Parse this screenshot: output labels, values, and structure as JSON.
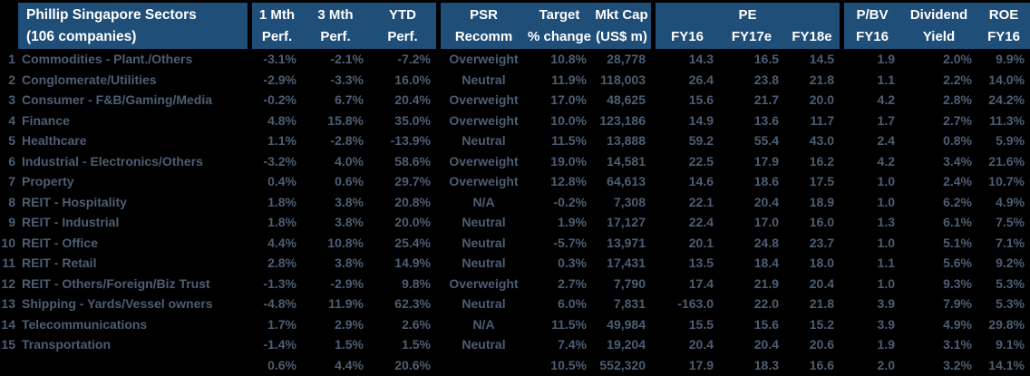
{
  "colors": {
    "header_bg": "#1f4e79",
    "header_text": "#ffffff",
    "body_bg": "#000000",
    "body_text": "#4d5e72"
  },
  "chart_data": {
    "type": "table",
    "title": "Phillip Singapore Sectors",
    "subtitle": "(106 companies)",
    "header": {
      "title_line1": "Phillip Singapore Sectors",
      "title_line2": "(106 companies)",
      "m1_l1": "1 Mth",
      "m1_l2": "Perf.",
      "m3_l1": "3 Mth",
      "m3_l2": "Perf.",
      "ytd_l1": "YTD",
      "ytd_l2": "Perf.",
      "psr_l1": "PSR",
      "psr_l2": "Recomm",
      "target_l1": "Target",
      "target_l2": "% change",
      "mktcap_l1": "Mkt Cap",
      "mktcap_l2": "(US$ m)",
      "pe_group": "PE",
      "pe_fy16": "FY16",
      "pe_fy17e": "FY17e",
      "pe_fy18e": "FY18e",
      "pbv_l1": "P/BV",
      "pbv_l2": "FY16",
      "div_l1": "Dividend",
      "div_l2": "Yield",
      "roe_l1": "ROE",
      "roe_l2": "FY16"
    },
    "rows": [
      {
        "num": "1",
        "sector": "Commodities - Plant./Others",
        "m1": "-3.1%",
        "m3": "-2.1%",
        "ytd": "-7.2%",
        "psr": "Overweight",
        "target": "10.8%",
        "mktcap": "28,778",
        "fy16": "14.3",
        "fy17e": "16.5",
        "fy18e": "14.5",
        "pbv": "1.9",
        "div": "2.0%",
        "roe": "9.9%"
      },
      {
        "num": "2",
        "sector": "Conglomerate/Utilities",
        "m1": "-2.9%",
        "m3": "-3.3%",
        "ytd": "16.0%",
        "psr": "Neutral",
        "target": "11.9%",
        "mktcap": "118,003",
        "fy16": "26.4",
        "fy17e": "23.8",
        "fy18e": "21.8",
        "pbv": "1.1",
        "div": "2.2%",
        "roe": "14.0%"
      },
      {
        "num": "3",
        "sector": "Consumer - F&B/Gaming/Media",
        "m1": "-0.2%",
        "m3": "6.7%",
        "ytd": "20.4%",
        "psr": "Overweight",
        "target": "17.0%",
        "mktcap": "48,625",
        "fy16": "15.6",
        "fy17e": "21.7",
        "fy18e": "20.0",
        "pbv": "4.2",
        "div": "2.8%",
        "roe": "24.2%"
      },
      {
        "num": "4",
        "sector": "Finance",
        "m1": "4.8%",
        "m3": "15.8%",
        "ytd": "35.0%",
        "psr": "Overweight",
        "target": "10.0%",
        "mktcap": "123,186",
        "fy16": "14.9",
        "fy17e": "13.6",
        "fy18e": "11.7",
        "pbv": "1.7",
        "div": "2.7%",
        "roe": "11.3%"
      },
      {
        "num": "5",
        "sector": "Healthcare",
        "m1": "1.1%",
        "m3": "-2.8%",
        "ytd": "-13.9%",
        "psr": "Neutral",
        "target": "11.5%",
        "mktcap": "13,888",
        "fy16": "59.2",
        "fy17e": "55.4",
        "fy18e": "43.0",
        "pbv": "2.4",
        "div": "0.8%",
        "roe": "5.9%"
      },
      {
        "num": "6",
        "sector": "Industrial - Electronics/Others",
        "m1": "-3.2%",
        "m3": "4.0%",
        "ytd": "58.6%",
        "psr": "Overweight",
        "target": "19.0%",
        "mktcap": "14,581",
        "fy16": "22.5",
        "fy17e": "17.9",
        "fy18e": "16.2",
        "pbv": "4.2",
        "div": "3.4%",
        "roe": "21.6%"
      },
      {
        "num": "7",
        "sector": "Property",
        "m1": "0.4%",
        "m3": "0.6%",
        "ytd": "29.7%",
        "psr": "Overweight",
        "target": "12.8%",
        "mktcap": "64,613",
        "fy16": "14.6",
        "fy17e": "18.6",
        "fy18e": "17.5",
        "pbv": "1.0",
        "div": "2.4%",
        "roe": "10.7%"
      },
      {
        "num": "8",
        "sector": "REIT - Hospitality",
        "m1": "1.8%",
        "m3": "3.8%",
        "ytd": "20.8%",
        "psr": "N/A",
        "target": "-0.2%",
        "mktcap": "7,308",
        "fy16": "22.1",
        "fy17e": "20.4",
        "fy18e": "18.9",
        "pbv": "1.0",
        "div": "6.2%",
        "roe": "4.9%"
      },
      {
        "num": "9",
        "sector": "REIT - Industrial",
        "m1": "1.8%",
        "m3": "3.8%",
        "ytd": "20.0%",
        "psr": "Neutral",
        "target": "1.9%",
        "mktcap": "17,127",
        "fy16": "22.4",
        "fy17e": "17.0",
        "fy18e": "16.0",
        "pbv": "1.3",
        "div": "6.1%",
        "roe": "7.5%"
      },
      {
        "num": "10",
        "sector": "REIT - Office",
        "m1": "4.4%",
        "m3": "10.8%",
        "ytd": "25.4%",
        "psr": "Neutral",
        "target": "-5.7%",
        "mktcap": "13,971",
        "fy16": "20.1",
        "fy17e": "24.8",
        "fy18e": "23.7",
        "pbv": "1.0",
        "div": "5.1%",
        "roe": "7.1%"
      },
      {
        "num": "11",
        "sector": "REIT - Retail",
        "m1": "2.8%",
        "m3": "3.8%",
        "ytd": "14.9%",
        "psr": "Neutral",
        "target": "0.3%",
        "mktcap": "17,431",
        "fy16": "13.5",
        "fy17e": "18.4",
        "fy18e": "18.0",
        "pbv": "1.1",
        "div": "5.6%",
        "roe": "9.2%"
      },
      {
        "num": "12",
        "sector": "REIT - Others/Foreign/Biz Trust",
        "m1": "-1.3%",
        "m3": "-2.9%",
        "ytd": "9.8%",
        "psr": "Overweight",
        "target": "2.7%",
        "mktcap": "7,790",
        "fy16": "17.4",
        "fy17e": "21.9",
        "fy18e": "20.4",
        "pbv": "1.0",
        "div": "9.3%",
        "roe": "5.3%"
      },
      {
        "num": "13",
        "sector": "Shipping - Yards/Vessel owners",
        "m1": "-4.8%",
        "m3": "11.9%",
        "ytd": "62.3%",
        "psr": "Neutral",
        "target": "6.0%",
        "mktcap": "7,831",
        "fy16": "-163.0",
        "fy17e": "22.0",
        "fy18e": "21.8",
        "pbv": "3.9",
        "div": "7.9%",
        "roe": "5.3%"
      },
      {
        "num": "14",
        "sector": "Telecommunications",
        "m1": "1.7%",
        "m3": "2.9%",
        "ytd": "2.6%",
        "psr": "N/A",
        "target": "11.5%",
        "mktcap": "49,984",
        "fy16": "15.5",
        "fy17e": "15.6",
        "fy18e": "15.2",
        "pbv": "3.9",
        "div": "4.9%",
        "roe": "29.8%"
      },
      {
        "num": "15",
        "sector": "Transportation",
        "m1": "-1.4%",
        "m3": "1.5%",
        "ytd": "1.5%",
        "psr": "Neutral",
        "target": "7.4%",
        "mktcap": "19,204",
        "fy16": "20.4",
        "fy17e": "20.4",
        "fy18e": "20.6",
        "pbv": "1.9",
        "div": "3.1%",
        "roe": "9.1%"
      }
    ],
    "total": {
      "num": "",
      "sector": "",
      "m1": "0.6%",
      "m3": "4.4%",
      "ytd": "20.6%",
      "psr": "",
      "target": "10.5%",
      "mktcap": "552,320",
      "fy16": "17.9",
      "fy17e": "18.3",
      "fy18e": "16.6",
      "pbv": "2.0",
      "div": "3.2%",
      "roe": "14.1%"
    }
  }
}
